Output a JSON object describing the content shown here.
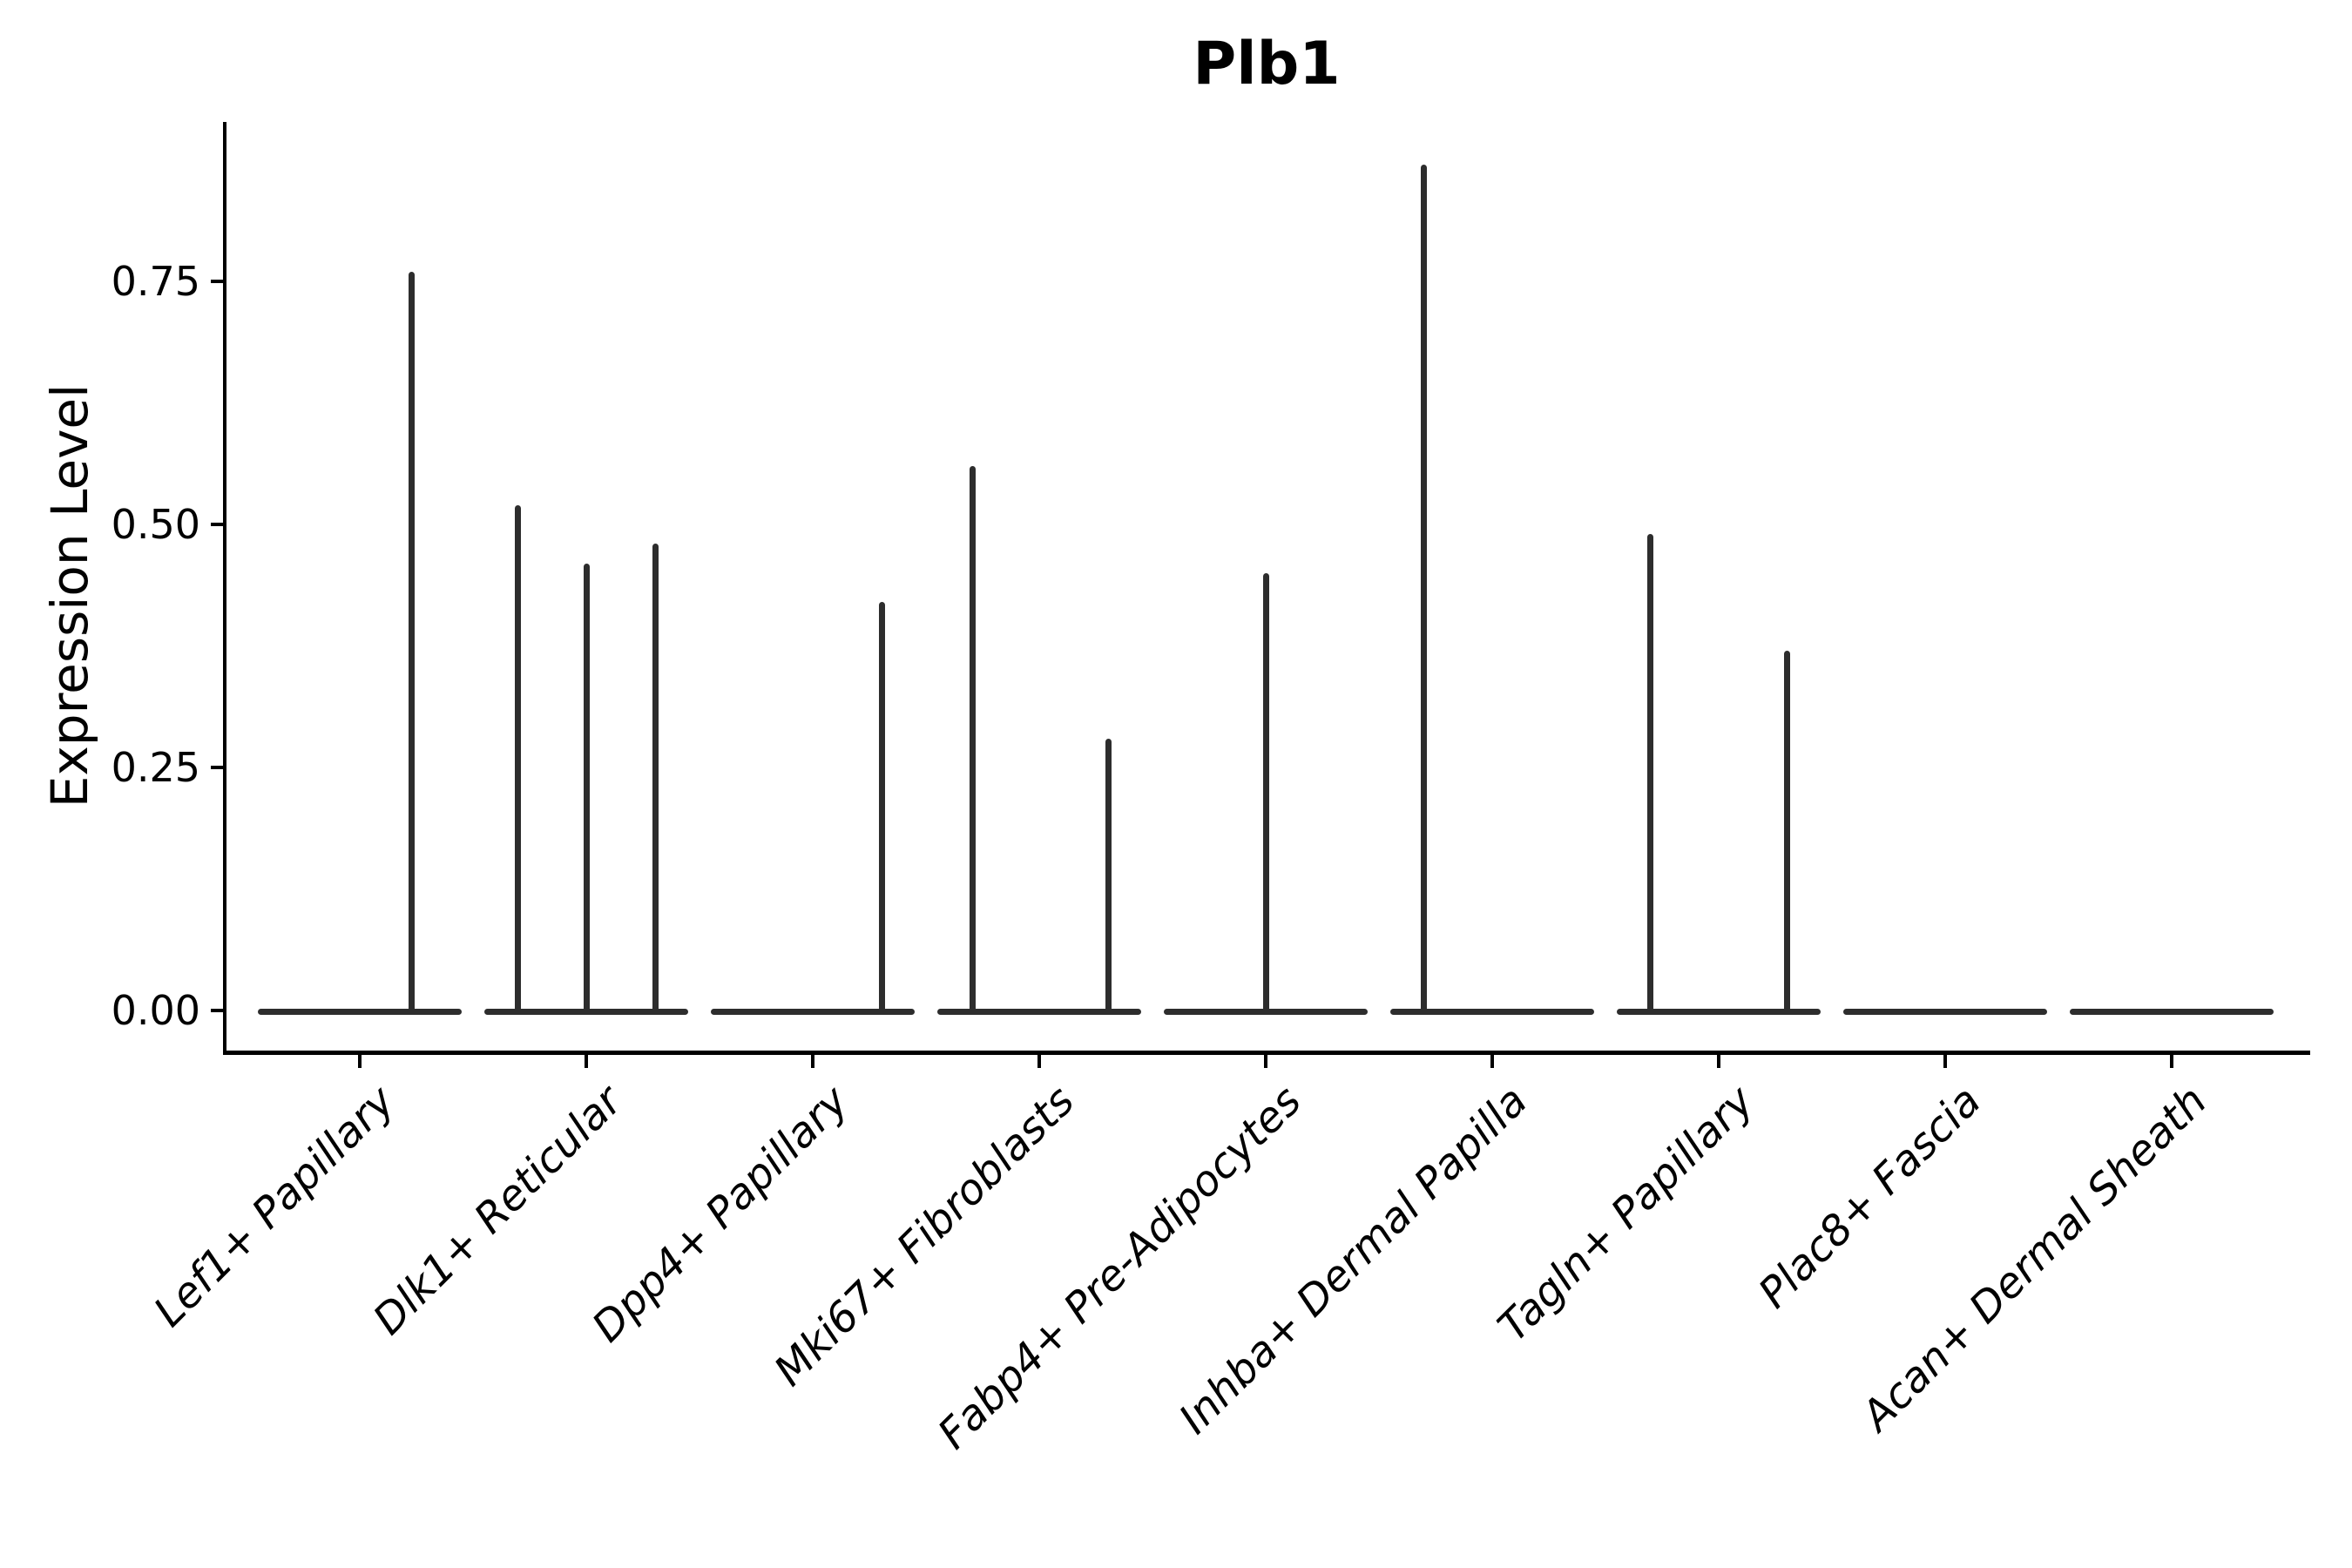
{
  "colors": {
    "background": "#ffffff",
    "axis": "#000000",
    "text": "#000000",
    "violin": "#2d2d2d"
  },
  "chart_data": {
    "type": "violin",
    "title": "Plb1",
    "xlabel": "",
    "ylabel": "Expression Level",
    "yticks": [
      0,
      0.25,
      0.5,
      0.75
    ],
    "yticklabels": [
      "0.00",
      "0.25",
      "0.50",
      "0.75"
    ],
    "ylim": [
      -0.04,
      0.91
    ],
    "grid": false,
    "legend": false,
    "categories": [
      "Lef1+ Papillary",
      "Dlk1+ Reticular",
      "Dpp4+ Papillary",
      "Mki67+ Fibroblasts",
      "Fabp4+ Pre-Adipocytes",
      "Inhba+ Dermal Papilla",
      "Tagln+ Papillary",
      "Plac8+ Fascia",
      "Acan+ Dermal Sheath"
    ],
    "violins": [
      {
        "category": "Lef1+ Papillary",
        "base_value": 0,
        "spikes": [
          {
            "x_offset": 59,
            "value": 0.76
          }
        ]
      },
      {
        "category": "Dlk1+ Reticular",
        "base_value": 0,
        "spikes": [
          {
            "x_offset": -79,
            "value": 0.52
          },
          {
            "x_offset": 0,
            "value": 0.46
          },
          {
            "x_offset": 79,
            "value": 0.48
          }
        ]
      },
      {
        "category": "Dpp4+ Papillary",
        "base_value": 0,
        "spikes": [
          {
            "x_offset": 79,
            "value": 0.42
          }
        ]
      },
      {
        "category": "Mki67+ Fibroblasts",
        "base_value": 0,
        "spikes": [
          {
            "x_offset": -77,
            "value": 0.56
          },
          {
            "x_offset": 79,
            "value": 0.28
          }
        ]
      },
      {
        "category": "Fabp4+ Pre-Adipocytes",
        "base_value": 0,
        "spikes": [
          {
            "x_offset": 0,
            "value": 0.45
          }
        ]
      },
      {
        "category": "Inhba+ Dermal Papilla",
        "base_value": 0,
        "spikes": [
          {
            "x_offset": -79,
            "value": 0.87
          }
        ]
      },
      {
        "category": "Tagln+ Papillary",
        "base_value": 0,
        "spikes": [
          {
            "x_offset": -79,
            "value": 0.49
          },
          {
            "x_offset": 78,
            "value": 0.37
          }
        ]
      },
      {
        "category": "Plac8+ Fascia",
        "base_value": 0,
        "spikes": []
      },
      {
        "category": "Acan+ Dermal Sheath",
        "base_value": 0,
        "spikes": []
      }
    ]
  }
}
